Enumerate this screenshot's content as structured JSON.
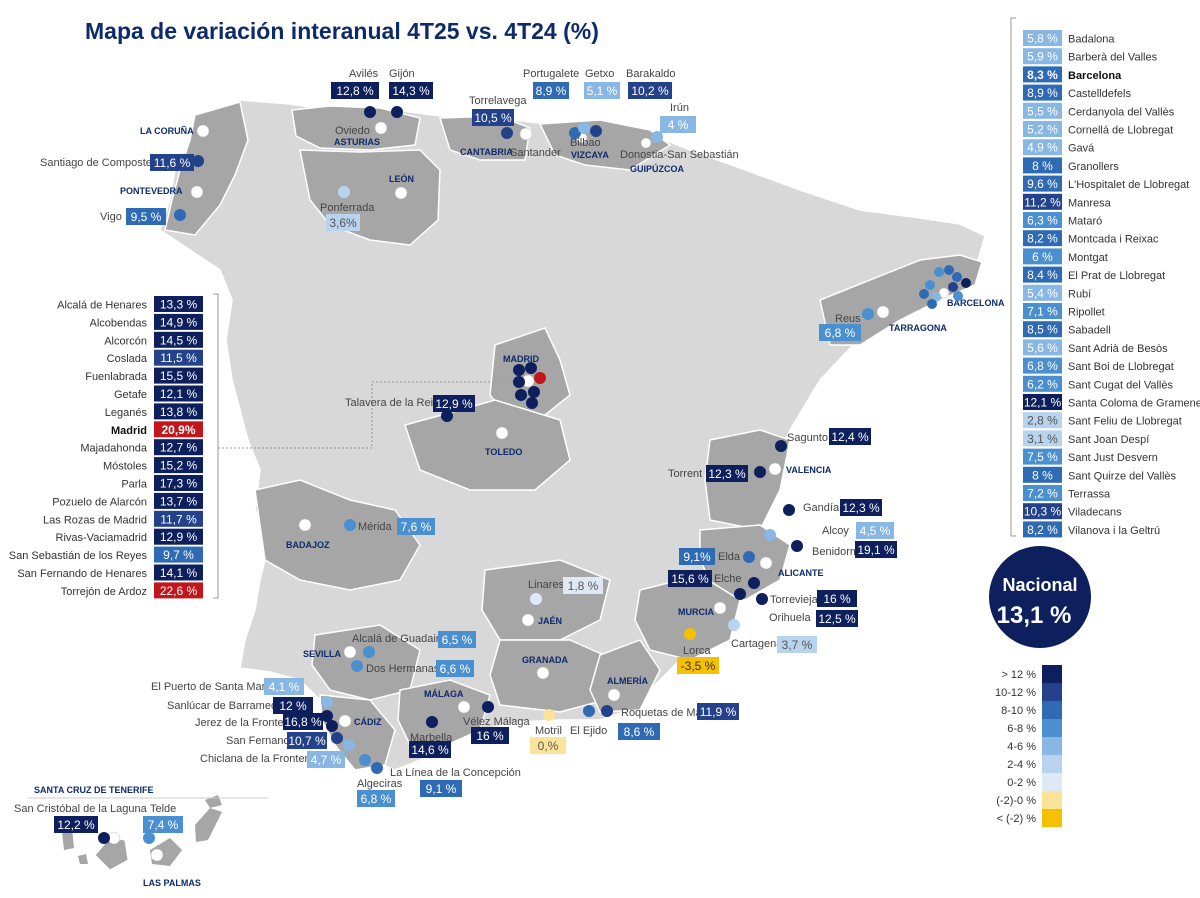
{
  "title": "Mapa de variación interanual  4T25 vs. 4T24 (%)",
  "colors": {
    "gt12": "#0d1f5c",
    "10_12": "#24418c",
    "8_10": "#2f6bb5",
    "6_8": "#4a8fd0",
    "4_6": "#88b7e4",
    "2_4": "#b8d3ee",
    "0_2": "#dfe9f5",
    "neg2_0": "#fbe49a",
    "lt_neg2": "#f5c000",
    "madrid_red": "#c0161c",
    "region_dark": "#a6a6a6",
    "region_light": "#d8d8d8"
  },
  "national": {
    "label": "Nacional",
    "value": "13,1 %"
  },
  "legend": {
    "items": [
      {
        "label": "> 12 %",
        "color": "#0d1f5c"
      },
      {
        "label": "10-12 %",
        "color": "#24418c"
      },
      {
        "label": "8-10 %",
        "color": "#2f6bb5"
      },
      {
        "label": "6-8 %",
        "color": "#4a8fd0"
      },
      {
        "label": "4-6 %",
        "color": "#88b7e4"
      },
      {
        "label": "2-4 %",
        "color": "#b8d3ee"
      },
      {
        "label": "0-2 %",
        "color": "#dfe9f5"
      },
      {
        "label": "(-2)-0 %",
        "color": "#fbe49a"
      },
      {
        "label": "< (-2) %",
        "color": "#f5c000"
      }
    ]
  },
  "barcelona_list": [
    {
      "name": "Badalona",
      "value": "5,8 %",
      "color": "#88b7e4"
    },
    {
      "name": "Barberà del Valles",
      "value": "5,9 %",
      "color": "#88b7e4"
    },
    {
      "name": "Barcelona",
      "value": "8,3 %",
      "color": "#2f6bb5",
      "bold": true
    },
    {
      "name": "Castelldefels",
      "value": "8,9 %",
      "color": "#2f6bb5"
    },
    {
      "name": "Cerdanyola del Vallès",
      "value": "5,5 %",
      "color": "#88b7e4"
    },
    {
      "name": "Cornellá de Llobregat",
      "value": "5,2 %",
      "color": "#88b7e4"
    },
    {
      "name": "Gavá",
      "value": "4,9 %",
      "color": "#88b7e4"
    },
    {
      "name": "Granollers",
      "value": "8 %",
      "color": "#2f6bb5"
    },
    {
      "name": "L'Hospitalet de Llobregat",
      "value": "9,6 %",
      "color": "#2f6bb5"
    },
    {
      "name": "Manresa",
      "value": "11,2 %",
      "color": "#24418c"
    },
    {
      "name": "Mataró",
      "value": "6,3 %",
      "color": "#4a8fd0"
    },
    {
      "name": "Montcada i Reixac",
      "value": "8,2 %",
      "color": "#2f6bb5"
    },
    {
      "name": "Montgat",
      "value": "6 %",
      "color": "#4a8fd0"
    },
    {
      "name": "El Prat de Llobregat",
      "value": "8,4 %",
      "color": "#2f6bb5"
    },
    {
      "name": "Rubí",
      "value": "5,4 %",
      "color": "#88b7e4"
    },
    {
      "name": "Ripollet",
      "value": "7,1 %",
      "color": "#4a8fd0"
    },
    {
      "name": "Sabadell",
      "value": "8,5 %",
      "color": "#2f6bb5"
    },
    {
      "name": "Sant Adrià de Besòs",
      "value": "5,6 %",
      "color": "#88b7e4"
    },
    {
      "name": "Sant Boi de Llobregat",
      "value": "6,8 %",
      "color": "#4a8fd0"
    },
    {
      "name": "Sant Cugat del Vallès",
      "value": "6,2 %",
      "color": "#4a8fd0"
    },
    {
      "name": "Santa Coloma de Gramenet",
      "value": "12,1 %",
      "color": "#0d1f5c"
    },
    {
      "name": "Sant Feliu de Llobregat",
      "value": "2,8 %",
      "color": "#b8d3ee"
    },
    {
      "name": "Sant Joan Despí",
      "value": "3,1 %",
      "color": "#b8d3ee"
    },
    {
      "name": "Sant Just Desvern",
      "value": "7,5 %",
      "color": "#4a8fd0"
    },
    {
      "name": "Sant Quirze del Vallès",
      "value": "8 %",
      "color": "#2f6bb5"
    },
    {
      "name": "Terrassa",
      "value": "7,2 %",
      "color": "#4a8fd0"
    },
    {
      "name": "Viladecans",
      "value": "10,3 %",
      "color": "#24418c"
    },
    {
      "name": "Vilanova i la Geltrú",
      "value": "8,2 %",
      "color": "#2f6bb5"
    }
  ],
  "madrid_list": [
    {
      "name": "Alcalá de Henares",
      "value": "13,3 %",
      "color": "#0d1f5c"
    },
    {
      "name": "Alcobendas",
      "value": "14,9 %",
      "color": "#0d1f5c"
    },
    {
      "name": "Alcorcón",
      "value": "14,5 %",
      "color": "#0d1f5c"
    },
    {
      "name": "Coslada",
      "value": "11,5 %",
      "color": "#24418c"
    },
    {
      "name": "Fuenlabrada",
      "value": "15,5 %",
      "color": "#0d1f5c"
    },
    {
      "name": "Getafe",
      "value": "12,1 %",
      "color": "#0d1f5c"
    },
    {
      "name": "Leganés",
      "value": "13,8 %",
      "color": "#0d1f5c"
    },
    {
      "name": "Madrid",
      "value": "20,9%",
      "color": "#c0161c",
      "bold": true
    },
    {
      "name": "Majadahonda",
      "value": "12,7 %",
      "color": "#0d1f5c"
    },
    {
      "name": "Móstoles",
      "value": "15,2 %",
      "color": "#0d1f5c"
    },
    {
      "name": "Parla",
      "value": "17,3 %",
      "color": "#0d1f5c"
    },
    {
      "name": "Pozuelo de Alarcón",
      "value": "13,7 %",
      "color": "#0d1f5c"
    },
    {
      "name": "Las Rozas de Madrid",
      "value": "11,7 %",
      "color": "#24418c"
    },
    {
      "name": "Rivas-Vaciamadrid",
      "value": "12,9 %",
      "color": "#0d1f5c"
    },
    {
      "name": "San Sebastián de los Reyes",
      "value": "9,7 %",
      "color": "#2f6bb5"
    },
    {
      "name": "San Fernando de Henares",
      "value": "14,1 %",
      "color": "#0d1f5c"
    },
    {
      "name": "Torrejón de Ardoz",
      "value": "22,6 %",
      "color": "#c0161c"
    }
  ],
  "provinces": [
    "LA CORUÑA",
    "PONTEVEDRA",
    "ASTURIAS",
    "LEÓN",
    "CANTABRIA",
    "VIZCAYA",
    "GUIPÚZCOA",
    "MADRID",
    "TOLEDO",
    "BADAJOZ",
    "VALENCIA",
    "BARCELONA",
    "TARRAGONA",
    "ALICANTE",
    "MURCIA",
    "JAÉN",
    "GRANADA",
    "ALMERÍA",
    "SEVILLA",
    "CÁDIZ",
    "MÁLAGA",
    "SANTA CRUZ DE TENERIFE",
    "LAS PALMAS"
  ],
  "cities": [
    {
      "name": "Avilés",
      "value": "12,8 %",
      "color": "#0d1f5c"
    },
    {
      "name": "Gijón",
      "value": "14,3 %",
      "color": "#0d1f5c"
    },
    {
      "name": "Oviedo",
      "value": ""
    },
    {
      "name": "Santiago de Compostela",
      "value": "11,6 %",
      "color": "#24418c"
    },
    {
      "name": "Vigo",
      "value": "9,5 %",
      "color": "#2f6bb5"
    },
    {
      "name": "Ponferrada",
      "value": "3,6%",
      "color": "#b8d3ee"
    },
    {
      "name": "Torrelavega",
      "value": "10,5 %",
      "color": "#24418c"
    },
    {
      "name": "Santander",
      "value": ""
    },
    {
      "name": "Portugalete",
      "value": "8,9 %",
      "color": "#2f6bb5"
    },
    {
      "name": "Getxo",
      "value": "5,1 %",
      "color": "#88b7e4"
    },
    {
      "name": "Barakaldo",
      "value": "10,2 %",
      "color": "#24418c"
    },
    {
      "name": "Bilbao",
      "value": ""
    },
    {
      "name": "Irún",
      "value": "4 %",
      "color": "#88b7e4"
    },
    {
      "name": "Donostia-San Sebastián",
      "value": ""
    },
    {
      "name": "Reus",
      "value": "6,8 %",
      "color": "#4a8fd0"
    },
    {
      "name": "Talavera de la Reina",
      "value": "12,9 %",
      "color": "#0d1f5c"
    },
    {
      "name": "Sagunto",
      "value": "12,4 %",
      "color": "#0d1f5c"
    },
    {
      "name": "Torrent",
      "value": "12,3 %",
      "color": "#0d1f5c"
    },
    {
      "name": "Gandía",
      "value": "12,3 %",
      "color": "#0d1f5c"
    },
    {
      "name": "Alcoy",
      "value": "4,5 %",
      "color": "#88b7e4"
    },
    {
      "name": "Benidorm",
      "value": "19,1 %",
      "color": "#0d1f5c"
    },
    {
      "name": "Elda",
      "value": "9,1%",
      "color": "#2f6bb5"
    },
    {
      "name": "Elche",
      "value": "15,6 %",
      "color": "#0d1f5c"
    },
    {
      "name": "Torrevieja",
      "value": "16 %",
      "color": "#0d1f5c"
    },
    {
      "name": "Orihuela",
      "value": "12,5 %",
      "color": "#0d1f5c"
    },
    {
      "name": "Cartagena",
      "value": "3,7 %",
      "color": "#b8d3ee"
    },
    {
      "name": "Lorca",
      "value": "-3,5 %",
      "color": "#f5c000"
    },
    {
      "name": "Mérida",
      "value": "7,6 %",
      "color": "#4a8fd0"
    },
    {
      "name": "Linares",
      "value": "1,8 %",
      "color": "#dfe9f5"
    },
    {
      "name": "Alcalá de Guadaira",
      "value": "6,5 %",
      "color": "#4a8fd0"
    },
    {
      "name": "Dos Hermanas",
      "value": "6,6 %",
      "color": "#4a8fd0"
    },
    {
      "name": "El Puerto de Santa María",
      "value": "4,1 %",
      "color": "#88b7e4"
    },
    {
      "name": "Sanlúcar de Barrameda",
      "value": "12 %",
      "color": "#0d1f5c"
    },
    {
      "name": "Jerez de la Frontera",
      "value": "16,8 %",
      "color": "#0d1f5c"
    },
    {
      "name": "San Fernando",
      "value": "10,7 %",
      "color": "#24418c"
    },
    {
      "name": "Chiclana de la Frontera",
      "value": "4,7 %",
      "color": "#88b7e4"
    },
    {
      "name": "Marbella",
      "value": "14,6 %",
      "color": "#0d1f5c"
    },
    {
      "name": "Vélez Málaga",
      "value": "16 %",
      "color": "#0d1f5c"
    },
    {
      "name": "La Línea de la Concepción",
      "value": "9,1 %",
      "color": "#2f6bb5"
    },
    {
      "name": "Algeciras",
      "value": "6,8 %",
      "color": "#4a8fd0"
    },
    {
      "name": "Motril",
      "value": "0,%",
      "color": "#fbe49a"
    },
    {
      "name": "Roquetas de Mar",
      "value": "11,9 %",
      "color": "#24418c"
    },
    {
      "name": "El Ejido",
      "value": "8,6 %",
      "color": "#2f6bb5"
    },
    {
      "name": "San Cristóbal de la Laguna",
      "value": "12,2 %",
      "color": "#0d1f5c"
    },
    {
      "name": "Telde",
      "value": "7,4 %",
      "color": "#4a8fd0"
    }
  ]
}
